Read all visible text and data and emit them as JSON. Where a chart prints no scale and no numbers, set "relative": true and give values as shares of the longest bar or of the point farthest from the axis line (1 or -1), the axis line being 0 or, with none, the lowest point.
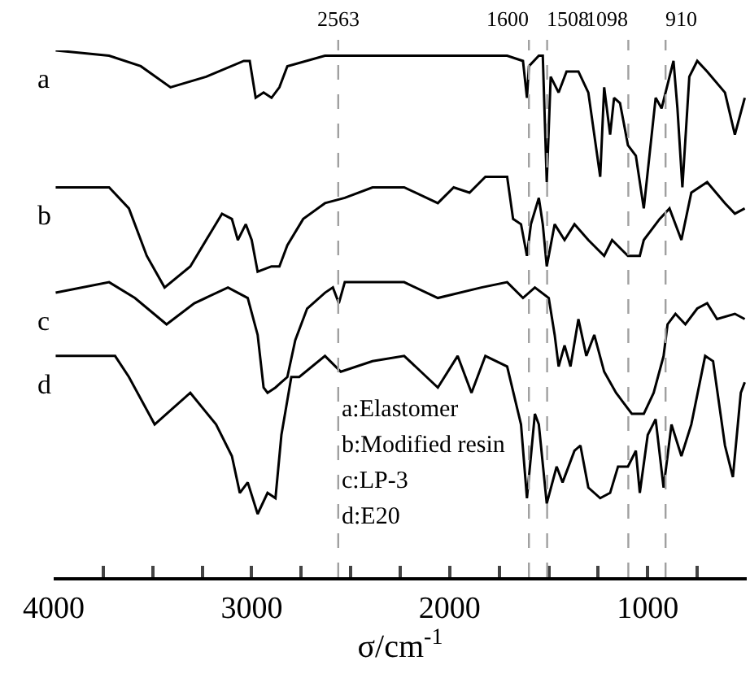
{
  "chart_data": {
    "type": "line",
    "relative": true,
    "xlabel": "σ/cm$^{-1}$",
    "xlim": [
      4000,
      500
    ],
    "xticks": [
      4000,
      {
        "value": 3750,
        "label": null
      },
      {
        "value": 3500,
        "label": null
      },
      {
        "value": 3250,
        "label": null
      },
      3000,
      {
        "value": 2750,
        "label": null
      },
      {
        "value": 2500,
        "label": null
      },
      {
        "value": 2250,
        "label": null
      },
      2000,
      {
        "value": 1750,
        "label": null
      },
      {
        "value": 1500,
        "label": null
      },
      {
        "value": 1250,
        "label": null
      },
      1000,
      {
        "value": 750,
        "label": null
      }
    ],
    "legend": false,
    "marker": "none",
    "line_style": "solid",
    "series": [
      {
        "name": "a",
        "color": "#000000",
        "x": [
          3990,
          3720,
          3560,
          3410,
          3230,
          3040,
          3010,
          2980,
          2940,
          2900,
          2860,
          2820,
          2630,
          2310,
          2120,
          1710,
          1630,
          1610,
          1600,
          1550,
          1530,
          1510,
          1490,
          1450,
          1410,
          1350,
          1300,
          1240,
          1220,
          1190,
          1170,
          1140,
          1100,
          1060,
          1020,
          980,
          960,
          930,
          890,
          870,
          850,
          825,
          790,
          750,
          700,
          610,
          560,
          510
        ],
        "values": [
          1.0,
          0.99,
          0.97,
          0.93,
          0.95,
          0.98,
          0.98,
          0.91,
          0.92,
          0.91,
          0.93,
          0.97,
          0.99,
          0.99,
          0.99,
          0.99,
          0.98,
          0.91,
          0.97,
          0.99,
          0.99,
          0.75,
          0.95,
          0.92,
          0.96,
          0.96,
          0.92,
          0.76,
          0.93,
          0.84,
          0.91,
          0.9,
          0.82,
          0.8,
          0.7,
          0.84,
          0.91,
          0.89,
          0.95,
          0.98,
          0.89,
          0.74,
          0.95,
          0.98,
          0.96,
          0.92,
          0.84,
          0.91
        ]
      },
      {
        "name": "b",
        "color": "#000000",
        "x": [
          3990,
          3720,
          3620,
          3530,
          3440,
          3310,
          3150,
          3100,
          3070,
          3030,
          3000,
          2970,
          2900,
          2860,
          2820,
          2740,
          2630,
          2530,
          2390,
          2230,
          2060,
          1980,
          1900,
          1820,
          1710,
          1680,
          1640,
          1610,
          1590,
          1550,
          1530,
          1510,
          1470,
          1420,
          1370,
          1300,
          1220,
          1180,
          1100,
          1040,
          1020,
          940,
          890,
          830,
          780,
          700,
          610,
          560,
          510
        ],
        "values": [
          0.74,
          0.74,
          0.7,
          0.61,
          0.55,
          0.59,
          0.69,
          0.68,
          0.64,
          0.67,
          0.64,
          0.58,
          0.59,
          0.59,
          0.63,
          0.68,
          0.71,
          0.72,
          0.74,
          0.74,
          0.71,
          0.74,
          0.73,
          0.76,
          0.76,
          0.68,
          0.67,
          0.61,
          0.67,
          0.72,
          0.67,
          0.59,
          0.67,
          0.64,
          0.67,
          0.64,
          0.61,
          0.64,
          0.61,
          0.61,
          0.64,
          0.68,
          0.7,
          0.64,
          0.73,
          0.75,
          0.71,
          0.69,
          0.7
        ]
      },
      {
        "name": "c",
        "color": "#000000",
        "x": [
          3990,
          3720,
          3590,
          3430,
          3290,
          3120,
          3020,
          2970,
          2940,
          2920,
          2880,
          2850,
          2820,
          2780,
          2720,
          2630,
          2590,
          2560,
          2530,
          2310,
          2230,
          2060,
          1840,
          1710,
          1630,
          1570,
          1500,
          1470,
          1450,
          1420,
          1390,
          1350,
          1310,
          1270,
          1220,
          1160,
          1080,
          1020,
          970,
          920,
          900,
          860,
          810,
          750,
          700,
          650,
          560,
          510
        ],
        "values": [
          0.54,
          0.56,
          0.53,
          0.48,
          0.52,
          0.55,
          0.53,
          0.46,
          0.36,
          0.35,
          0.36,
          0.37,
          0.38,
          0.45,
          0.51,
          0.54,
          0.55,
          0.52,
          0.56,
          0.56,
          0.56,
          0.53,
          0.55,
          0.56,
          0.53,
          0.55,
          0.53,
          0.46,
          0.4,
          0.44,
          0.4,
          0.49,
          0.42,
          0.46,
          0.39,
          0.35,
          0.31,
          0.31,
          0.35,
          0.42,
          0.48,
          0.5,
          0.48,
          0.51,
          0.52,
          0.49,
          0.5,
          0.49
        ]
      },
      {
        "name": "d",
        "color": "#000000",
        "x": [
          3990,
          3690,
          3620,
          3490,
          3310,
          3180,
          3100,
          3060,
          3020,
          2970,
          2920,
          2880,
          2850,
          2800,
          2760,
          2630,
          2550,
          2390,
          2230,
          2060,
          1960,
          1890,
          1820,
          1710,
          1640,
          1610,
          1570,
          1550,
          1510,
          1460,
          1430,
          1370,
          1340,
          1300,
          1240,
          1190,
          1150,
          1100,
          1060,
          1040,
          1000,
          960,
          920,
          880,
          830,
          780,
          710,
          670,
          610,
          570,
          530,
          510
        ],
        "values": [
          0.42,
          0.42,
          0.38,
          0.29,
          0.35,
          0.29,
          0.23,
          0.16,
          0.18,
          0.12,
          0.16,
          0.15,
          0.27,
          0.38,
          0.38,
          0.42,
          0.39,
          0.41,
          0.42,
          0.36,
          0.42,
          0.35,
          0.42,
          0.4,
          0.29,
          0.15,
          0.31,
          0.29,
          0.14,
          0.21,
          0.18,
          0.24,
          0.25,
          0.17,
          0.15,
          0.16,
          0.21,
          0.21,
          0.24,
          0.16,
          0.27,
          0.3,
          0.17,
          0.29,
          0.23,
          0.29,
          0.42,
          0.41,
          0.25,
          0.19,
          0.35,
          0.37
        ]
      }
    ],
    "ref_lines": [
      {
        "axis": "x",
        "value": 2563,
        "label": "2563",
        "color": "#a0a0a0",
        "line_style": "dashed"
      },
      {
        "axis": "x",
        "value": 1600,
        "label": "1600",
        "color": "#a0a0a0",
        "line_style": "dashed"
      },
      {
        "axis": "x",
        "value": 1508,
        "label": "1508",
        "color": "#a0a0a0",
        "line_style": "dashed"
      },
      {
        "axis": "x",
        "value": 1098,
        "label": "1098",
        "color": "#a0a0a0",
        "line_style": "dashed"
      },
      {
        "axis": "x",
        "value": 910,
        "label": "910",
        "color": "#a0a0a0",
        "line_style": "dashed"
      }
    ],
    "annotations": [
      "a:Elastomer",
      "b:Modified resin",
      "c:LP-3",
      "d:E20"
    ]
  }
}
